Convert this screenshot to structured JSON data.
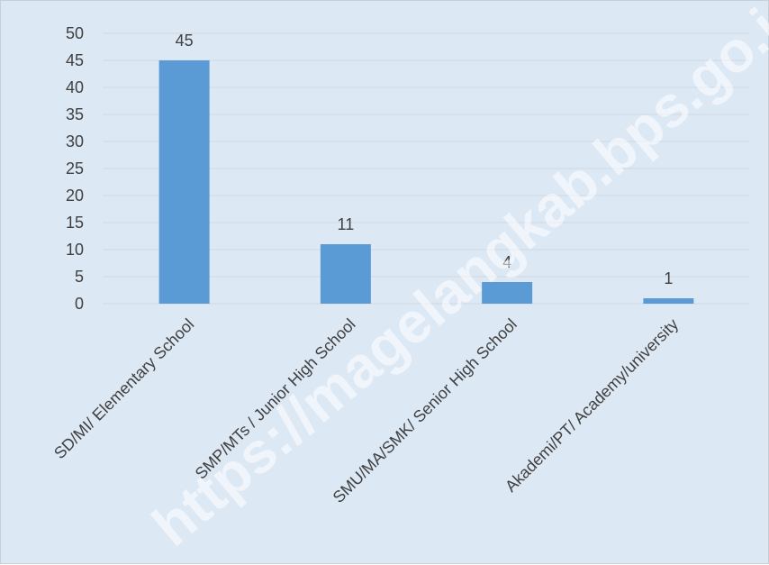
{
  "watermark": "https://magelangkab.bps.go.id",
  "colors": {
    "background": "#dde8f5",
    "bar": "#5b9bd5",
    "gridline": "#d0d7e0",
    "text": "#404040",
    "watermark": "rgba(255,255,255,0.55)"
  },
  "chart_data": {
    "type": "bar",
    "title": "",
    "xlabel": "",
    "ylabel": "",
    "categories": [
      "SD/MI/ Elementary School",
      "SMP/MTs / Junior High School",
      "SMU/MA/SMK/ Senior High School",
      "Akademi/PT/ Academy/university"
    ],
    "values": [
      45,
      11,
      4,
      1
    ],
    "ylim": [
      0,
      50
    ],
    "yticks": [
      0,
      5,
      10,
      15,
      20,
      25,
      30,
      35,
      40,
      45,
      50
    ],
    "grid": true,
    "legend": "none",
    "data_labels": true
  }
}
